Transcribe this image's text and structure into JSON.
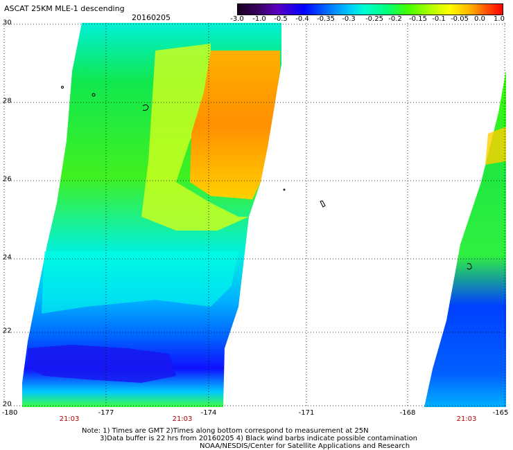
{
  "title": "ASCAT 25KM MLE-1 descending",
  "date": "20160205",
  "colorbar": {
    "labels": [
      "-3.0",
      "-1.0",
      "-0.5",
      "-0.4",
      "-0.35",
      "-0.3",
      "-0.25",
      "-0.2",
      "-0.15",
      "-0.1",
      "-0.05",
      "0.0",
      "1.0"
    ]
  },
  "axes": {
    "y_ticks": [
      "30",
      "28",
      "26",
      "24",
      "22",
      "20"
    ],
    "x_ticks": [
      "-180",
      "-177",
      "-174",
      "-171",
      "-168",
      "-165"
    ]
  },
  "pass_times": [
    "21:03",
    "21:03",
    "21:03"
  ],
  "notes": {
    "line1": "Note: 1) Times are GMT 2)Times along bottom correspond to measurement at 25N",
    "line2": "3)Data buffer is 22 hrs from 20160205 4) Black wind barbs indicate possible contamination",
    "line3": "NOAA/NESDIS/Center for Satellite Applications and Research"
  },
  "colors": {
    "orange": "#ff9a00",
    "yellow": "#e0ff00",
    "green": "#20ee40",
    "cyan": "#00ffe0",
    "blue": "#0050ff",
    "deep_blue": "#1010ff"
  }
}
